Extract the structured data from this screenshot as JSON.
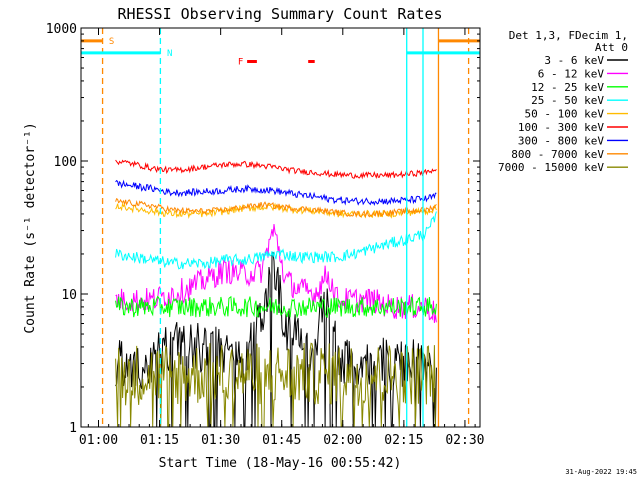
{
  "chart_data": {
    "type": "line",
    "title": "RHESSI Observing Summary Count Rates",
    "xlabel": "Start Time (18-May-16 00:55:42)",
    "ylabel": "Count Rate (s⁻¹ detector⁻¹)",
    "x_units": "minutes after 00:55:42",
    "xlim": [
      0,
      98
    ],
    "ylim": [
      1,
      1000
    ],
    "yscale": "log",
    "xticks": [
      {
        "label": "01:00",
        "value": 4.3
      },
      {
        "label": "01:15",
        "value": 19.3
      },
      {
        "label": "01:30",
        "value": 34.3
      },
      {
        "label": "01:45",
        "value": 49.3
      },
      {
        "label": "02:00",
        "value": 64.3
      },
      {
        "label": "02:15",
        "value": 79.3
      },
      {
        "label": "02:30",
        "value": 94.3
      }
    ],
    "yticks": [
      {
        "label": "1",
        "value": 1
      },
      {
        "label": "10",
        "value": 10
      },
      {
        "label": "100",
        "value": 100
      },
      {
        "label": "1000",
        "value": 1000
      }
    ],
    "legend_header": [
      "Det 1,3, FDecim 1,",
      "Att 0"
    ],
    "legend_position": "right",
    "series": [
      {
        "name": "3 - 6 keV",
        "color": "#000000",
        "values": [
          0,
          3,
          3,
          3,
          4,
          4,
          4,
          4,
          3,
          6,
          16,
          6,
          5,
          3,
          10,
          3,
          3,
          3,
          3,
          3,
          3,
          2
        ],
        "noise": 0.45,
        "floor": 1,
        "spiky": true
      },
      {
        "name": "6 - 12 keV",
        "color": "#ff00ff",
        "values": [
          0,
          9,
          9,
          9,
          10,
          11,
          13,
          15,
          14,
          15,
          30,
          13,
          11,
          10,
          14,
          9,
          9,
          9,
          8,
          8,
          8,
          7
        ],
        "noise": 0.22
      },
      {
        "name": "12 - 25 keV",
        "color": "#00ff00",
        "values": [
          0,
          8,
          8,
          8,
          8,
          8,
          8,
          8,
          8,
          8,
          8,
          8,
          8,
          8,
          8,
          8,
          8,
          8,
          8,
          8,
          8,
          8
        ],
        "noise": 0.18
      },
      {
        "name": "25 - 50 keV",
        "color": "#00ffff",
        "values": [
          0,
          20,
          19,
          18,
          17,
          17,
          17,
          18,
          18,
          19,
          20,
          20,
          19,
          19,
          19,
          19,
          20,
          22,
          24,
          26,
          29,
          38
        ],
        "noise": 0.1
      },
      {
        "name": "50 - 100 keV",
        "color": "#ffbb00",
        "values": [
          0,
          46,
          44,
          42,
          40,
          40,
          40,
          42,
          44,
          45,
          45,
          44,
          43,
          42,
          41,
          40,
          40,
          40,
          40,
          41,
          42,
          44
        ],
        "noise": 0.06
      },
      {
        "name": "100 - 300 keV",
        "color": "#ff0000",
        "values": [
          0,
          100,
          95,
          88,
          85,
          87,
          91,
          94,
          95,
          92,
          90,
          87,
          84,
          82,
          80,
          79,
          78,
          78,
          78,
          80,
          82,
          88
        ],
        "noise": 0.05
      },
      {
        "name": "300 - 800 keV",
        "color": "#0000ff",
        "values": [
          0,
          68,
          65,
          62,
          58,
          58,
          59,
          60,
          62,
          61,
          60,
          58,
          56,
          54,
          52,
          51,
          50,
          50,
          50,
          51,
          52,
          55
        ],
        "noise": 0.06
      },
      {
        "name": "800 - 7000 keV",
        "color": "#ff8800",
        "values": [
          0,
          50,
          48,
          46,
          43,
          42,
          42,
          43,
          45,
          47,
          46,
          45,
          44,
          43,
          42,
          41,
          40,
          40,
          41,
          42,
          43,
          46
        ],
        "noise": 0.05
      },
      {
        "name": "7000 - 15000 keV",
        "color": "#888800",
        "values": [
          0,
          2.5,
          2.5,
          2.5,
          2.5,
          2.5,
          2.5,
          2.5,
          2.5,
          2.5,
          2.5,
          2.5,
          2.5,
          2.5,
          2.5,
          2.5,
          2.5,
          2.5,
          2.5,
          2.5,
          2.5,
          2.5
        ],
        "noise": 0.55,
        "floor": 1,
        "spiky": true
      }
    ],
    "series_x": [
      8.5,
      8.5,
      13,
      17.5,
      22,
      26.5,
      31,
      35.5,
      40,
      44.5,
      47.3,
      50,
      53,
      57.5,
      60.5,
      63,
      67,
      71.5,
      76,
      80.5,
      85,
      87.3
    ],
    "series_xlim": [
      8.5,
      87.3
    ],
    "event_lines": [
      {
        "x": 5.3,
        "color": "#ff8800",
        "dashed": true
      },
      {
        "x": 19.5,
        "color": "#00ffff",
        "dashed": true
      },
      {
        "x": 80.0,
        "color": "#00ffff",
        "dashed": false
      },
      {
        "x": 84.0,
        "color": "#00ffff",
        "dashed": false
      },
      {
        "x": 87.8,
        "color": "#ff8800",
        "dashed": false
      },
      {
        "x": 95.2,
        "color": "#ff8800",
        "dashed": true
      }
    ],
    "top_bars": [
      {
        "x0": 0,
        "x1": 5.3,
        "y": 800,
        "color": "#ff8800",
        "label": "S",
        "label_x": 7.5
      },
      {
        "x0": 0,
        "x1": 19.5,
        "y": 650,
        "color": "#00ffff",
        "label": "N",
        "label_x": 21.8
      },
      {
        "x0": 40.8,
        "x1": 43.2,
        "y": 560,
        "color": "#ff0000",
        "label": "F",
        "label_x": 39.2
      },
      {
        "x0": 55.8,
        "x1": 57.4,
        "y": 560,
        "color": "#ff0000",
        "label": "",
        "label_x": 0
      },
      {
        "x0": 80.0,
        "x1": 98,
        "y": 650,
        "color": "#00ffff",
        "label": "",
        "label_x": 0
      },
      {
        "x0": 87.8,
        "x1": 98,
        "y": 800,
        "color": "#ff8800",
        "label": "",
        "label_x": 0
      }
    ]
  },
  "footer_timestamp": "31-Aug-2022 19:45"
}
